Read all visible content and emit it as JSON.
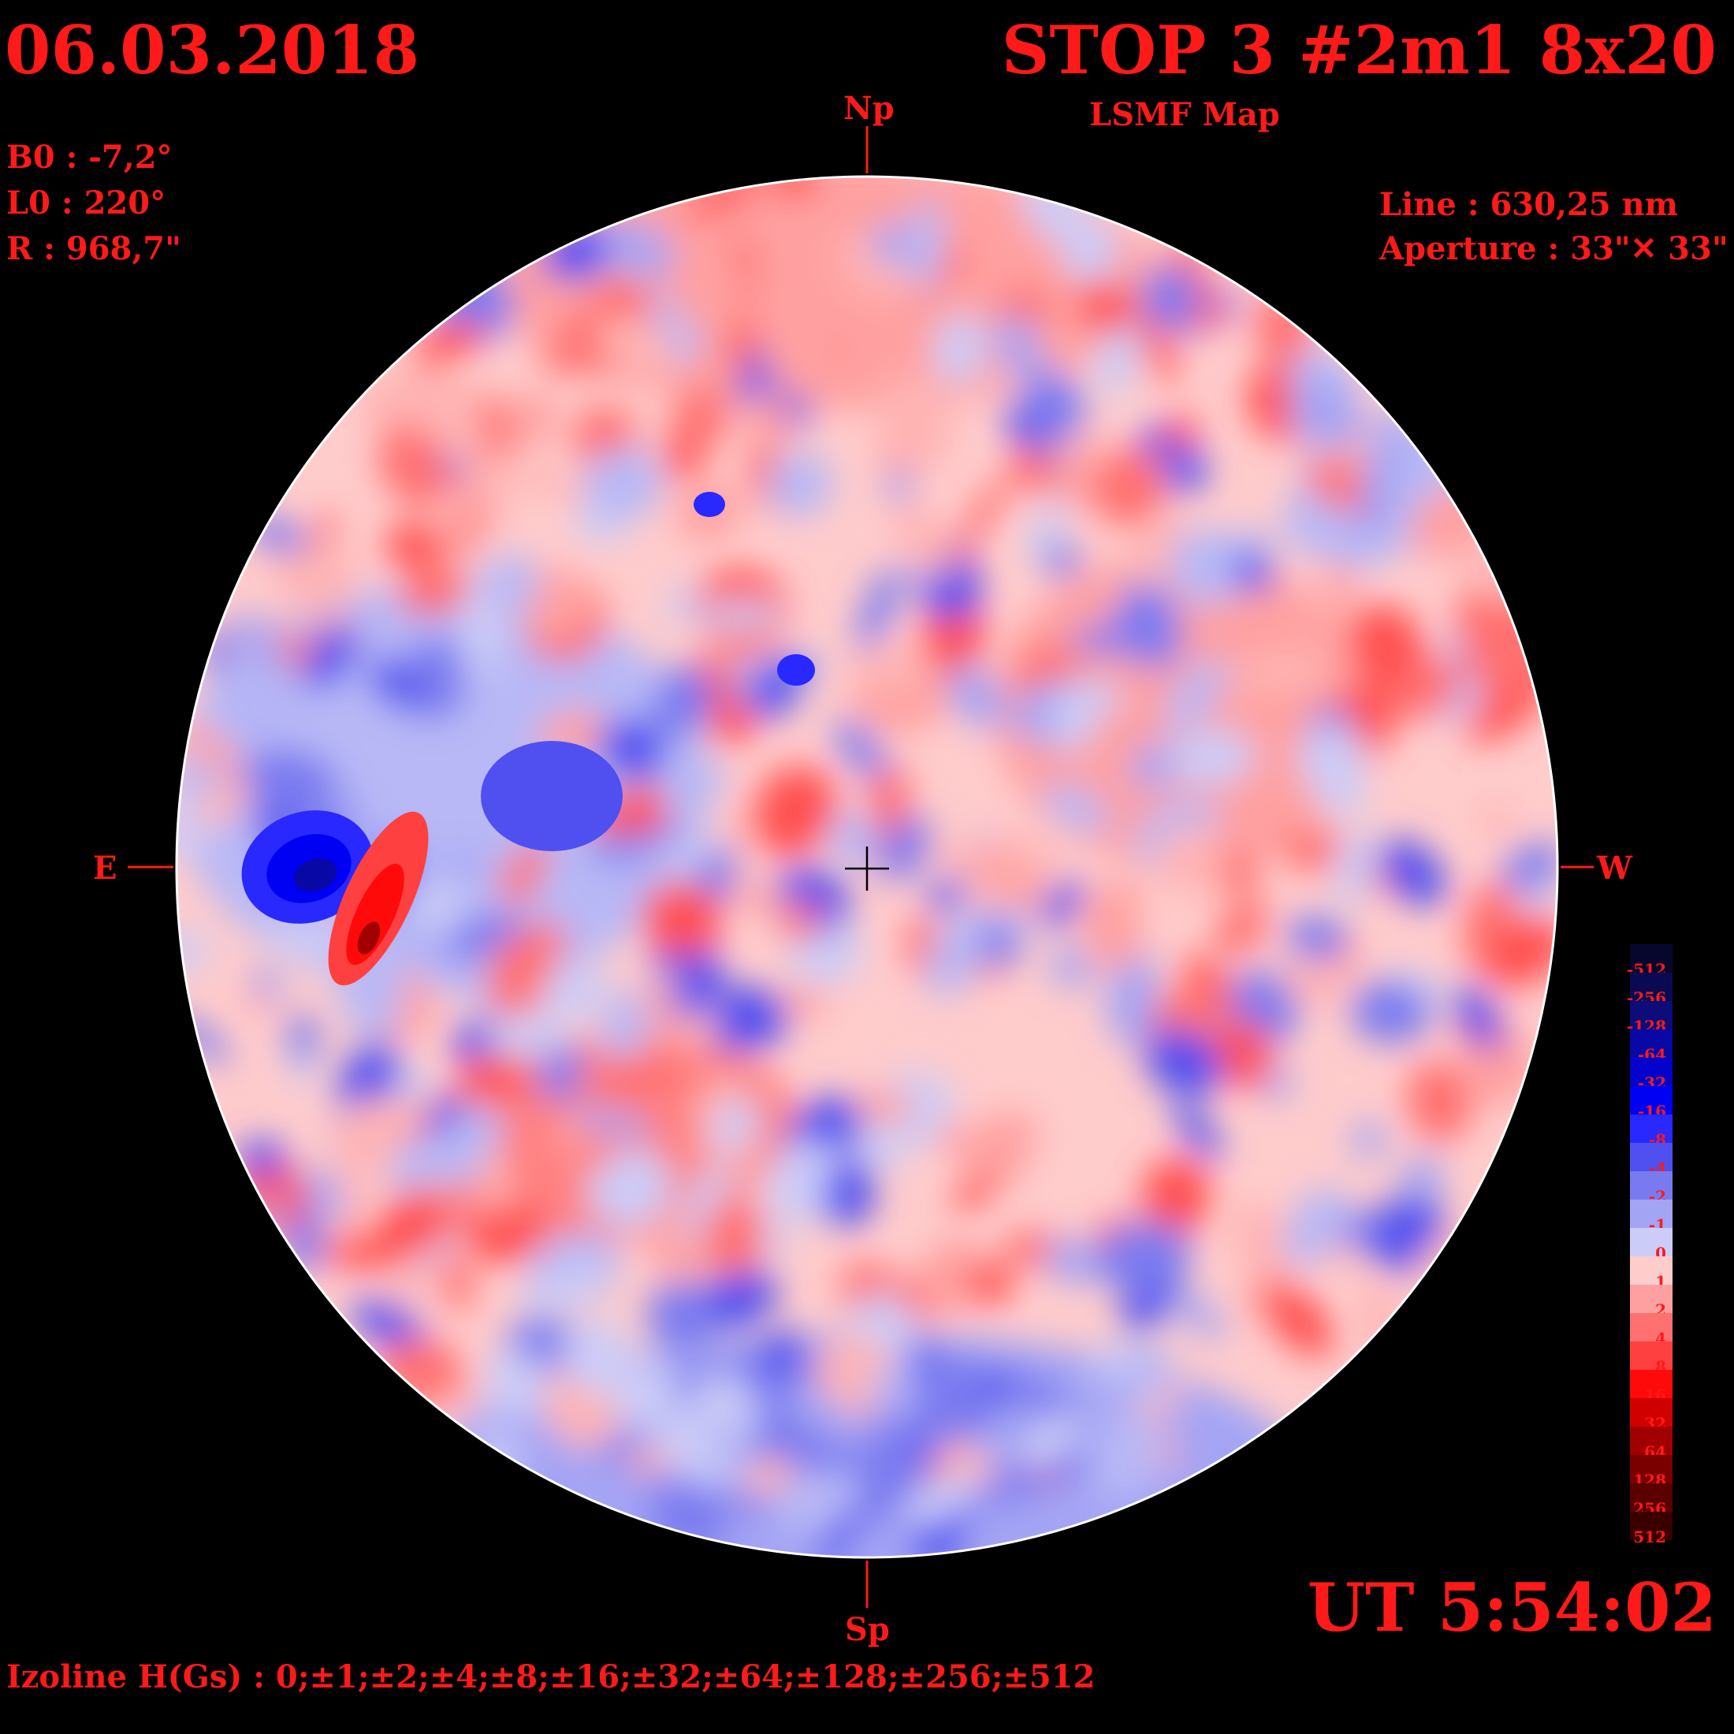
{
  "header": {
    "date": "06.03.2018",
    "title": "STOP 3 #2m1 8x20",
    "subtitle": "LSMF  Map"
  },
  "params": {
    "b0": "B0 : -7,2°",
    "l0": "L0 : 220°",
    "r": "R  : 968,7\""
  },
  "instrument": {
    "line": "Line :  630,25 nm",
    "aperture": "Aperture : 33\"✕ 33\""
  },
  "directions": {
    "north": "Np",
    "south": "Sp",
    "east": "E",
    "west": "W"
  },
  "time": "UT 5:54:02",
  "izoline": "Izoline H(Gs) : 0;±1;±2;±4;±8;±16;±32;±64;±128;±256;±512",
  "colors": {
    "text": "#ff1a1a",
    "background": "#000000",
    "isoline": "#ffffff"
  },
  "colorbar": {
    "levels": [
      {
        "label": "-512",
        "color": "#07072e"
      },
      {
        "label": "-256",
        "color": "#0a0a52"
      },
      {
        "label": "-128",
        "color": "#0c0c7a"
      },
      {
        "label": "-64",
        "color": "#0808a6"
      },
      {
        "label": "-32",
        "color": "#0202cc"
      },
      {
        "label": "-16",
        "color": "#0000f2"
      },
      {
        "label": "-8",
        "color": "#2828ff"
      },
      {
        "label": "-4",
        "color": "#5050f0"
      },
      {
        "label": "-2",
        "color": "#7a7af0"
      },
      {
        "label": "-1",
        "color": "#a4a4f4"
      },
      {
        "label": "0",
        "color": "#ccccf8"
      },
      {
        "label": "1",
        "color": "#ffcccc"
      },
      {
        "label": "2",
        "color": "#ffa0a0"
      },
      {
        "label": "4",
        "color": "#ff7070"
      },
      {
        "label": "8",
        "color": "#ff4040"
      },
      {
        "label": "16",
        "color": "#ff0a0a"
      },
      {
        "label": "32",
        "color": "#d00000"
      },
      {
        "label": "64",
        "color": "#a00000"
      },
      {
        "label": "128",
        "color": "#7a0000"
      },
      {
        "label": "256",
        "color": "#5a0000"
      },
      {
        "label": "512",
        "color": "#3a0000"
      }
    ]
  }
}
